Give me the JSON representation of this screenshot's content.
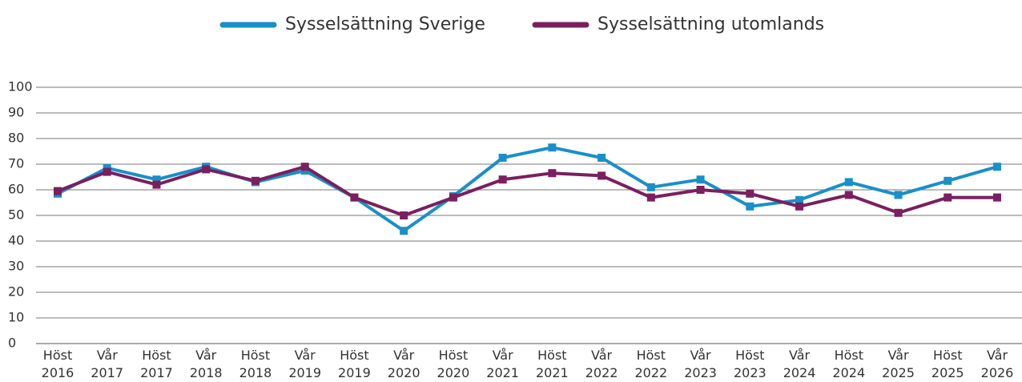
{
  "chart_data": {
    "type": "line",
    "categories": [
      "Höst 2016",
      "Vår 2017",
      "Höst 2017",
      "Vår 2018",
      "Höst 2018",
      "Vår 2019",
      "Höst 2019",
      "Vår 2020",
      "Höst 2020",
      "Vår 2021",
      "Höst 2021",
      "Vår 2022",
      "Höst 2022",
      "Vår 2023",
      "Höst 2023",
      "Vår 2024",
      "Höst 2024",
      "Vår 2025",
      "Höst 2025",
      "Vår 2026"
    ],
    "series": [
      {
        "name": "Sysselsättning Sverige",
        "color": "#1a8fc9",
        "values": [
          58.5,
          68.5,
          64,
          69,
          63,
          67.5,
          57,
          44,
          57.5,
          72.5,
          76.5,
          72.5,
          61,
          64,
          53.5,
          56,
          63,
          58,
          63.5,
          69
        ]
      },
      {
        "name": "Sysselsättning utomlands",
        "color": "#7a1f5f",
        "values": [
          59.5,
          67,
          62,
          68,
          63.5,
          69,
          57,
          50,
          57,
          64,
          66.5,
          65.5,
          57,
          60,
          58.5,
          53.5,
          58,
          51,
          57,
          57
        ]
      }
    ],
    "ylim": [
      0,
      100
    ],
    "yticks": [
      0,
      10,
      20,
      30,
      40,
      50,
      60,
      70,
      80,
      90,
      100
    ],
    "grid": true,
    "legend": "top"
  }
}
